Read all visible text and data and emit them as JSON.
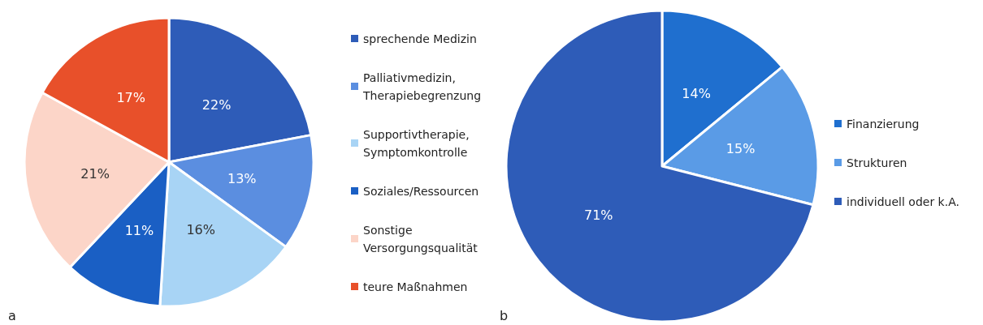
{
  "chart_data": [
    {
      "type": "pie",
      "categories": [
        "sprechende Medizin",
        "Palliativmedizin, Therapiebegrenzung",
        "Supportivtherapie, Symptomkontrolle",
        "Soziales/Ressourcen",
        "Sonstige Versorgungsqualität",
        "teure Maßnahmen"
      ],
      "values": [
        22,
        13,
        16,
        11,
        21,
        17
      ],
      "value_labels": [
        "22%",
        "13%",
        "16%",
        "11%",
        "21%",
        "17%"
      ],
      "colors": [
        "#2e5cb8",
        "#5b8ee0",
        "#a8d4f5",
        "#1a5fc4",
        "#fcd5c8",
        "#e8502a"
      ],
      "legend": "right",
      "annotations": [
        "a"
      ]
    },
    {
      "type": "pie",
      "categories": [
        "Finanzierung",
        "Strukturen",
        "individuell oder k.A."
      ],
      "values": [
        14,
        15,
        71
      ],
      "value_labels": [
        "14%",
        "15%",
        "71%"
      ],
      "colors": [
        "#1f6fcf",
        "#5a9be6",
        "#2e5cb8"
      ],
      "legend": "right",
      "annotations": [
        "b"
      ]
    }
  ]
}
